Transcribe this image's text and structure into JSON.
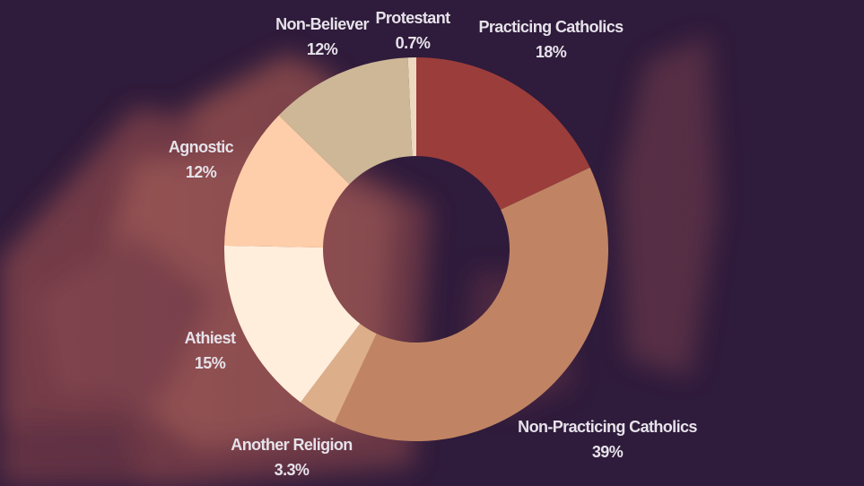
{
  "chart_data": {
    "type": "pie",
    "donut": true,
    "title": "",
    "slices": [
      {
        "label": "Practicing Catholics",
        "value": 18,
        "display": "18%",
        "color": "#9b3d3b"
      },
      {
        "label": "Non-Practicing Catholics",
        "value": 39,
        "display": "39%",
        "color": "#c08464"
      },
      {
        "label": "Another Religion",
        "value": 3.3,
        "display": "3.3%",
        "color": "#dcae8a"
      },
      {
        "label": "Athiest",
        "value": 15,
        "display": "15%",
        "color": "#ffeedb"
      },
      {
        "label": "Agnostic",
        "value": 12,
        "display": "12%",
        "color": "#fecda9"
      },
      {
        "label": "Non-Believer",
        "value": 12,
        "display": "12%",
        "color": "#cdb797"
      },
      {
        "label": "Protestant",
        "value": 0.7,
        "display": "0.7%",
        "color": "#ecd9bf"
      }
    ],
    "colors": {
      "background": "#2f1b3b",
      "hole": "#2f1b3b",
      "label_text": "#e6e2ea"
    }
  }
}
